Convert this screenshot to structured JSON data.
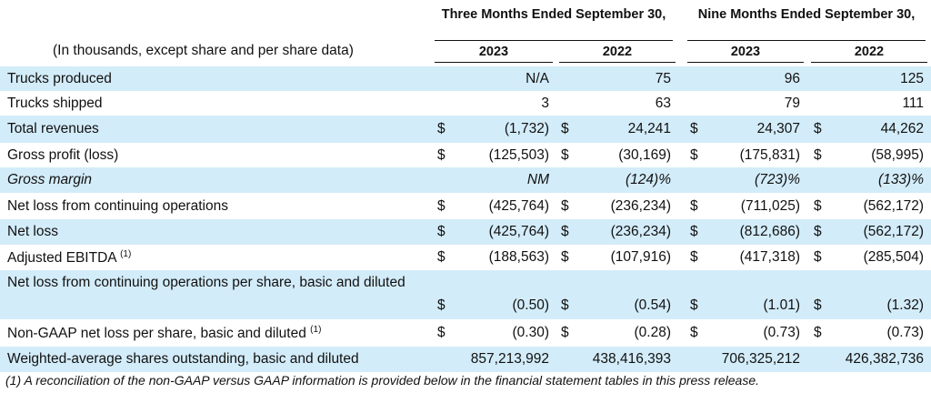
{
  "header": {
    "units_note": "(In thousands, except share and per share data)",
    "three_months": "Three Months Ended September 30,",
    "nine_months": "Nine Months Ended September 30,",
    "years": [
      "2023",
      "2022",
      "2023",
      "2022"
    ]
  },
  "rows": [
    {
      "label": "Trucks produced",
      "dollar": [
        "",
        "",
        "",
        ""
      ],
      "values": [
        "N/A",
        "75",
        "96",
        "125"
      ]
    },
    {
      "label": "Trucks shipped",
      "dollar": [
        "",
        "",
        "",
        ""
      ],
      "values": [
        "3",
        "63",
        "79",
        "111"
      ]
    },
    {
      "label": "Total revenues",
      "dollar": [
        "$",
        "$",
        "$",
        "$"
      ],
      "values": [
        "(1,732)",
        "24,241",
        "24,307",
        "44,262"
      ]
    },
    {
      "label": "Gross profit (loss)",
      "dollar": [
        "$",
        "$",
        "$",
        "$"
      ],
      "values": [
        "(125,503)",
        "(30,169)",
        "(175,831)",
        "(58,995)"
      ]
    },
    {
      "label": "Gross margin",
      "dollar": [
        "",
        "",
        "",
        ""
      ],
      "values": [
        "NM",
        "(124)%",
        "(723)%",
        "(133)%"
      ]
    },
    {
      "label": "Net loss from continuing operations",
      "dollar": [
        "$",
        "$",
        "$",
        "$"
      ],
      "values": [
        "(425,764)",
        "(236,234)",
        "(711,025)",
        "(562,172)"
      ]
    },
    {
      "label": "Net loss",
      "dollar": [
        "$",
        "$",
        "$",
        "$"
      ],
      "values": [
        "(425,764)",
        "(236,234)",
        "(812,686)",
        "(562,172)"
      ]
    },
    {
      "label": "Adjusted EBITDA",
      "sup": "(1)",
      "dollar": [
        "$",
        "$",
        "$",
        "$"
      ],
      "values": [
        "(188,563)",
        "(107,916)",
        "(417,318)",
        "(285,504)"
      ]
    },
    {
      "label": "Net loss from continuing operations per share, basic and diluted",
      "dollar": [
        "$",
        "$",
        "$",
        "$"
      ],
      "values": [
        "(0.50)",
        "(0.54)",
        "(1.01)",
        "(1.32)"
      ]
    },
    {
      "label": "Non-GAAP net loss per share, basic and diluted",
      "sup": "(1)",
      "dollar": [
        "$",
        "$",
        "$",
        "$"
      ],
      "values": [
        "(0.30)",
        "(0.28)",
        "(0.73)",
        "(0.73)"
      ]
    },
    {
      "label": "Weighted-average shares outstanding, basic and diluted",
      "dollar": [
        "",
        "",
        "",
        ""
      ],
      "values": [
        "857,213,992",
        "438,416,393",
        "706,325,212",
        "426,382,736"
      ]
    }
  ],
  "footnote": "(1) A reconciliation of the non-GAAP versus GAAP information is provided below in the financial statement tables in this press release."
}
